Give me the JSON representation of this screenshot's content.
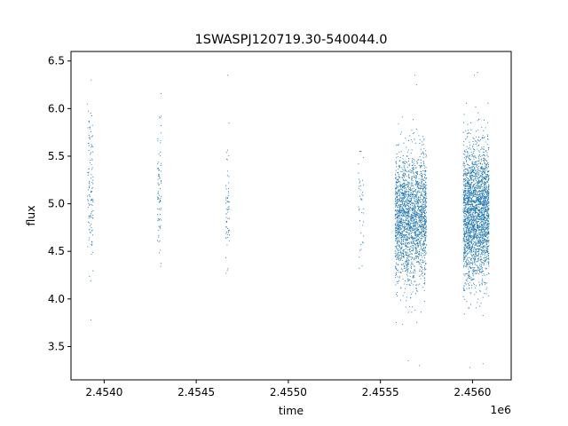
{
  "chart_data": {
    "type": "scatter",
    "title": "1SWASPJ120719.30-540044.0",
    "xlabel": "time",
    "ylabel": "flux",
    "x_offset_label": "1e6",
    "xlim": [
      2.45382,
      2.45621
    ],
    "ylim": [
      3.15,
      6.6
    ],
    "x_ticks": [
      2.454,
      2.4545,
      2.455,
      2.4555,
      2.456
    ],
    "x_tick_labels": [
      "2.4540",
      "2.4545",
      "2.4550",
      "2.4555",
      "2.4560"
    ],
    "y_ticks": [
      3.5,
      4.0,
      4.5,
      5.0,
      5.5,
      6.0,
      6.5
    ],
    "y_tick_labels": [
      "3.5",
      "4.0",
      "4.5",
      "5.0",
      "5.5",
      "6.0",
      "6.5"
    ],
    "grid": false,
    "marker_color": "#1f77b4",
    "series": [
      {
        "clusters": [
          {
            "x_min": 2.45391,
            "x_max": 2.45394,
            "y_mean": 5.2,
            "y_sd": 0.4,
            "count": 120,
            "outliers": [
              3.78,
              4.19,
              6.3
            ]
          },
          {
            "x_min": 2.45429,
            "x_max": 2.45431,
            "y_mean": 5.15,
            "y_sd": 0.35,
            "count": 80,
            "outliers": [
              4.65,
              5.92
            ]
          },
          {
            "x_min": 2.45466,
            "x_max": 2.45468,
            "y_mean": 4.95,
            "y_sd": 0.3,
            "count": 60,
            "outliers": [
              4.27,
              6.35
            ]
          },
          {
            "x_min": 2.45538,
            "x_max": 2.45541,
            "y_mean": 5.05,
            "y_sd": 0.3,
            "count": 40,
            "outliers": [
              4.52,
              5.55
            ]
          },
          {
            "x_min": 2.45558,
            "x_max": 2.45575,
            "y_mean": 4.85,
            "y_sd": 0.33,
            "count": 2200,
            "outliers": [
              3.35,
              3.3,
              6.35,
              6.25
            ]
          },
          {
            "x_min": 2.45595,
            "x_max": 2.45609,
            "y_mean": 4.9,
            "y_sd": 0.35,
            "count": 2600,
            "outliers": [
              3.28,
              3.32,
              6.38,
              6.35
            ]
          }
        ]
      }
    ]
  }
}
